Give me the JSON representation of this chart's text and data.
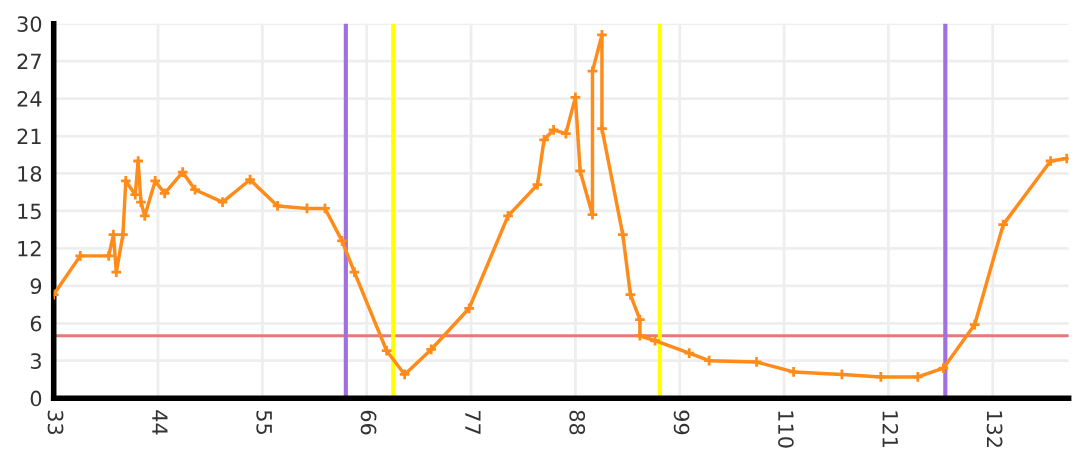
{
  "chart_data": {
    "type": "line",
    "xlim": [
      33,
      140
    ],
    "ylim": [
      0,
      30
    ],
    "xticks": [
      33,
      44,
      55,
      66,
      77,
      88,
      99,
      110,
      121,
      132
    ],
    "yticks": [
      0,
      3,
      6,
      9,
      12,
      15,
      18,
      21,
      24,
      27,
      30
    ],
    "grid": true,
    "marker": "cross",
    "line_style": "solid",
    "series": [
      {
        "color": "#ff8c1a",
        "x": [
          33,
          35.8,
          38.8,
          39.3,
          39.6,
          40.3,
          40.6,
          41.6,
          41.9,
          42.2,
          42.6,
          43.7,
          44.7,
          46.6,
          47.9,
          50.8,
          53.7,
          56.6,
          59.7,
          61.6,
          63.4,
          64.7,
          68.1,
          70,
          72.8,
          76.8,
          80.9,
          84,
          84.7,
          85.7,
          87,
          88,
          88.5,
          89.8,
          89.8,
          90.8,
          90.8,
          93,
          93.8,
          94.8,
          94.8,
          96.4,
          100,
          102.1,
          107.1,
          111,
          116.1,
          120.2,
          124.1,
          126.8,
          130.1,
          133.1,
          138.1,
          139.8
        ],
        "values": [
          8.3,
          11.4,
          11.4,
          13.1,
          10.1,
          13.1,
          17.4,
          16.3,
          19.0,
          15.7,
          14.6,
          17.4,
          16.4,
          18.1,
          16.7,
          15.7,
          17.5,
          15.4,
          15.2,
          15.2,
          12.6,
          10.1,
          3.8,
          1.9,
          3.9,
          7.2,
          14.6,
          17.1,
          20.7,
          21.5,
          21.2,
          24.1,
          18.2,
          14.7,
          26.2,
          29.1,
          21.6,
          13.1,
          8.3,
          6.3,
          5.0,
          4.6,
          3.6,
          3.0,
          2.9,
          2.1,
          1.9,
          1.7,
          1.7,
          2.4,
          5.9,
          13.9,
          19.0,
          19.2
        ]
      }
    ],
    "ref_lines": [
      {
        "axis": "y",
        "value": 5,
        "color": "#e87878"
      },
      {
        "axis": "x",
        "value": 63.8,
        "color": "#a070e0"
      },
      {
        "axis": "x",
        "value": 68.8,
        "color": "#ffff00"
      },
      {
        "axis": "x",
        "value": 96.9,
        "color": "#ffff00"
      },
      {
        "axis": "x",
        "value": 127,
        "color": "#a070e0"
      }
    ]
  }
}
